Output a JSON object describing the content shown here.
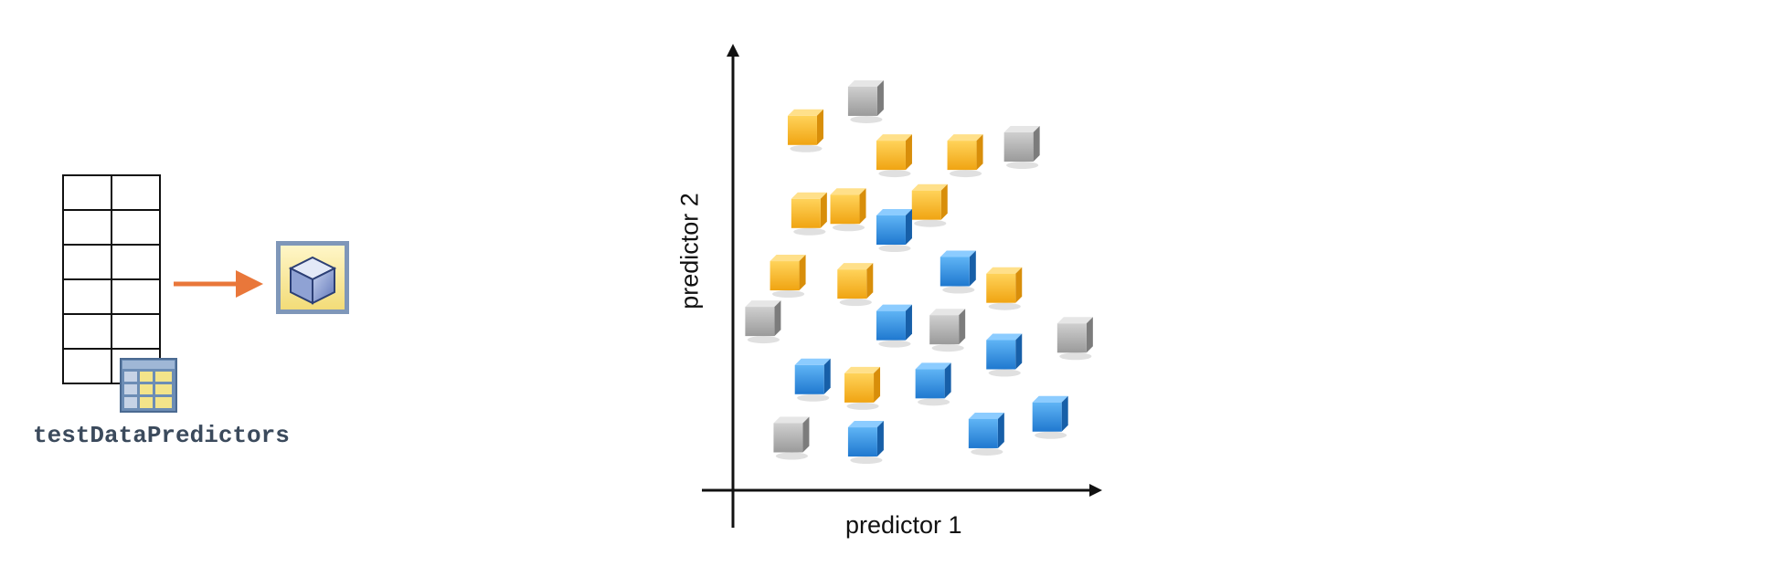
{
  "left_panel": {
    "variable_name": "testDataPredictors",
    "table": {
      "rows": 6,
      "cols": 2
    },
    "arrow_color": "#e9773a",
    "model_icon": "cube-model-icon",
    "table_icon": "data-table-icon"
  },
  "scatter": {
    "x_label": "predictor 1",
    "y_label": "predictor 2",
    "class_colors": {
      "yellow": "#f6b31f",
      "blue": "#2f8fe0",
      "gray": "#a6a6a6"
    },
    "points": [
      {
        "cls": "yellow",
        "x": 0.17,
        "y": 0.84
      },
      {
        "cls": "gray",
        "x": 0.34,
        "y": 0.91
      },
      {
        "cls": "yellow",
        "x": 0.42,
        "y": 0.78
      },
      {
        "cls": "yellow",
        "x": 0.62,
        "y": 0.78
      },
      {
        "cls": "gray",
        "x": 0.78,
        "y": 0.8
      },
      {
        "cls": "yellow",
        "x": 0.18,
        "y": 0.64
      },
      {
        "cls": "yellow",
        "x": 0.29,
        "y": 0.65
      },
      {
        "cls": "yellow",
        "x": 0.52,
        "y": 0.66
      },
      {
        "cls": "blue",
        "x": 0.42,
        "y": 0.6
      },
      {
        "cls": "yellow",
        "x": 0.12,
        "y": 0.49
      },
      {
        "cls": "yellow",
        "x": 0.31,
        "y": 0.47
      },
      {
        "cls": "blue",
        "x": 0.6,
        "y": 0.5
      },
      {
        "cls": "yellow",
        "x": 0.73,
        "y": 0.46
      },
      {
        "cls": "gray",
        "x": 0.05,
        "y": 0.38
      },
      {
        "cls": "blue",
        "x": 0.42,
        "y": 0.37
      },
      {
        "cls": "gray",
        "x": 0.57,
        "y": 0.36
      },
      {
        "cls": "blue",
        "x": 0.73,
        "y": 0.3
      },
      {
        "cls": "gray",
        "x": 0.93,
        "y": 0.34
      },
      {
        "cls": "blue",
        "x": 0.19,
        "y": 0.24
      },
      {
        "cls": "yellow",
        "x": 0.33,
        "y": 0.22
      },
      {
        "cls": "blue",
        "x": 0.53,
        "y": 0.23
      },
      {
        "cls": "gray",
        "x": 0.13,
        "y": 0.1
      },
      {
        "cls": "blue",
        "x": 0.34,
        "y": 0.09
      },
      {
        "cls": "blue",
        "x": 0.68,
        "y": 0.11
      },
      {
        "cls": "blue",
        "x": 0.86,
        "y": 0.15
      }
    ]
  }
}
